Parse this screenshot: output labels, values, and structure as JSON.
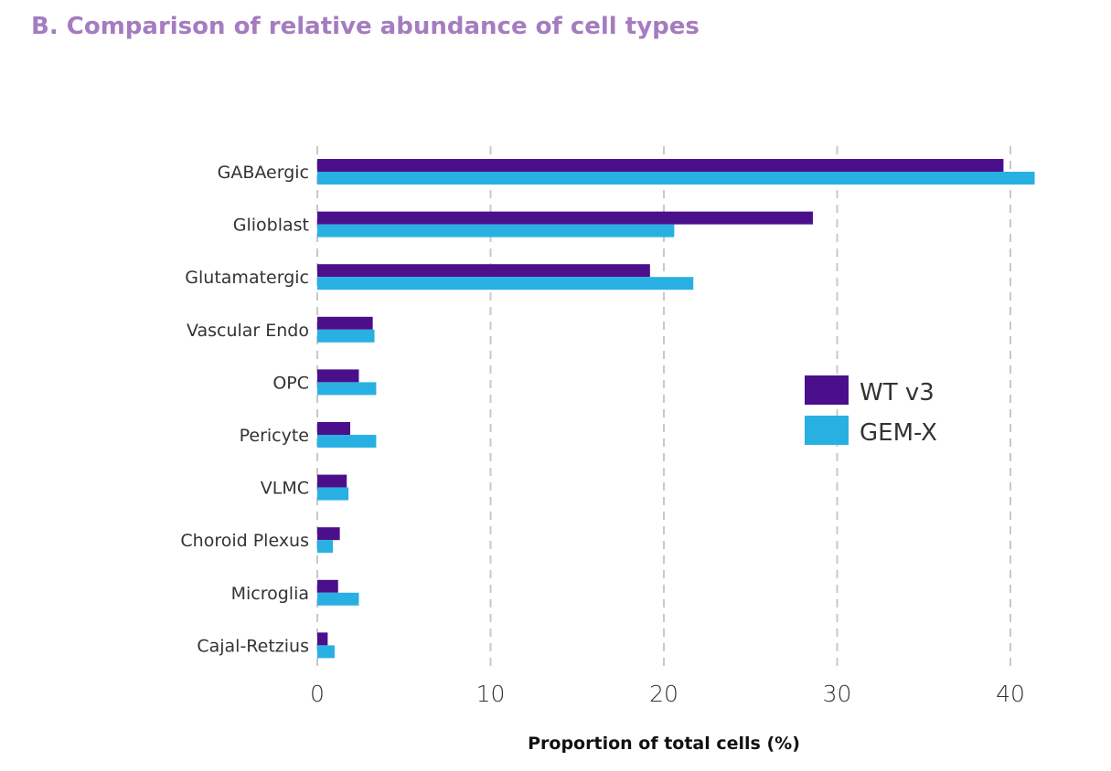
{
  "title": "B. Comparison of relative abundance of cell types",
  "colors": {
    "title": "#a47cc0",
    "grid": "#c8c8c8"
  },
  "chart_data": {
    "type": "bar",
    "orientation": "horizontal",
    "title": "B. Comparison of relative abundance of cell types",
    "xlabel": "Proportion of total cells (%)",
    "ylabel": "",
    "xlim": [
      0,
      42
    ],
    "xticks": [
      0,
      10,
      20,
      30,
      40
    ],
    "grid": "vertical dashed",
    "legend_position": "right",
    "categories": [
      "GABAergic",
      "Glioblast",
      "Glutamatergic",
      "Vascular Endo",
      "OPC",
      "Pericyte",
      "VLMC",
      "Choroid Plexus",
      "Microglia",
      "Cajal-Retzius"
    ],
    "series": [
      {
        "name": "WT v3",
        "color": "#4b0f8c",
        "values": [
          39.6,
          28.6,
          19.2,
          3.2,
          2.4,
          1.9,
          1.7,
          1.3,
          1.2,
          0.6
        ]
      },
      {
        "name": "GEM-X",
        "color": "#29b0e3",
        "values": [
          41.4,
          20.6,
          21.7,
          3.3,
          3.4,
          3.4,
          1.8,
          0.9,
          2.4,
          1.0
        ]
      }
    ]
  }
}
